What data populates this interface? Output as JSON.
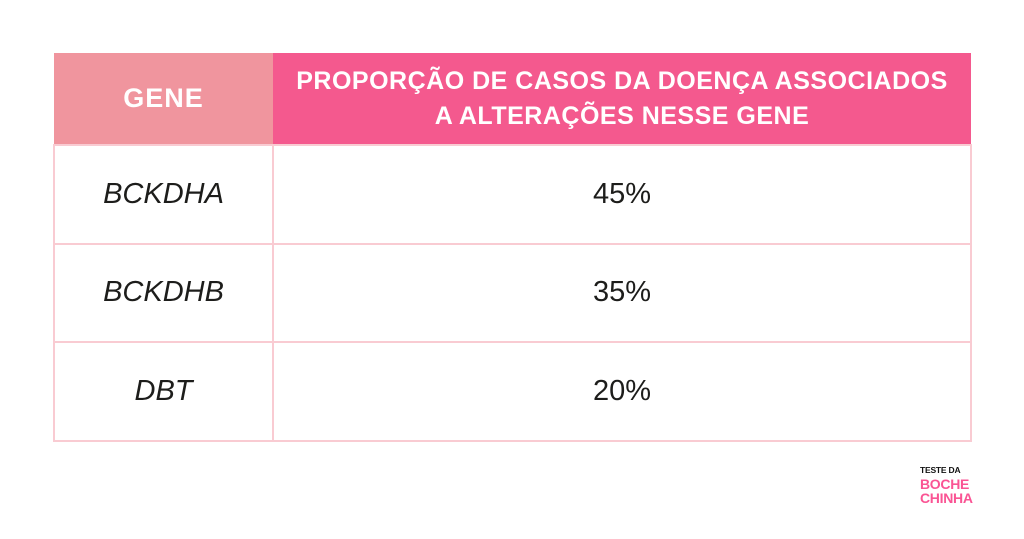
{
  "theme": {
    "header-gene-bg": "#F0959E",
    "header-prop-bg": "#F4598E",
    "header-text": "#FFFFFF",
    "cell-text": "#1D1D1B",
    "border": "#F9CBD2",
    "logo-pink": "#FA5494",
    "logo-black": "#111111",
    "page-bg": "#FFFFFF"
  },
  "table": {
    "columns": [
      {
        "label": "GENE"
      },
      {
        "label": "PROPORÇÃO DE CASOS DA DOENÇA ASSOCIADOS A ALTERAÇÕES NESSE GENE"
      }
    ],
    "rows": [
      {
        "gene": "BCKDHA",
        "proportion": "45%"
      },
      {
        "gene": "BCKDHB",
        "proportion": "35%"
      },
      {
        "gene": "DBT",
        "proportion": "20%"
      }
    ]
  },
  "logo": {
    "line1": "TESTE DA",
    "line2": "BOCHE",
    "line3": "CHINHA"
  },
  "chart_data": {
    "type": "table",
    "title": "",
    "columns": [
      "GENE",
      "PROPORÇÃO DE CASOS DA DOENÇA ASSOCIADOS A ALTERAÇÕES NESSE GENE"
    ],
    "rows": [
      [
        "BCKDHA",
        "45%"
      ],
      [
        "BCKDHB",
        "35%"
      ],
      [
        "DBT",
        "20%"
      ]
    ],
    "categories": [
      "BCKDHA",
      "BCKDHB",
      "DBT"
    ],
    "values": [
      45,
      35,
      20
    ],
    "value_unit": "%"
  }
}
